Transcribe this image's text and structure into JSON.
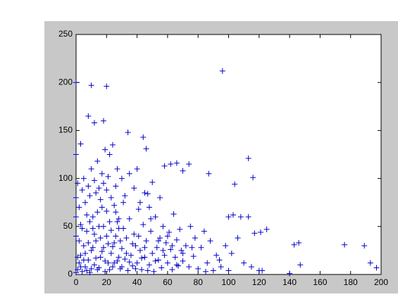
{
  "chart_data": {
    "type": "scatter",
    "color": "#0000c8",
    "marker": "plus",
    "x": [
      96,
      10,
      20,
      0,
      8,
      12,
      18,
      34,
      44,
      46,
      3,
      0,
      113,
      116,
      104,
      87,
      74,
      66,
      62,
      58,
      70,
      176,
      189,
      193,
      197,
      146,
      143,
      147,
      140,
      120,
      122,
      125,
      121,
      113,
      103,
      100,
      108,
      117,
      1,
      2,
      3,
      4,
      5,
      6,
      7,
      8,
      9,
      10,
      11,
      12,
      13,
      14,
      15,
      16,
      17,
      18,
      19,
      20,
      21,
      22,
      23,
      24,
      25,
      26,
      27,
      28,
      29,
      30,
      31,
      32,
      33,
      34,
      35,
      36,
      37,
      38,
      39,
      40,
      41,
      42,
      43,
      44,
      45,
      46,
      47,
      48,
      49,
      50,
      51,
      52,
      53,
      54,
      55,
      56,
      57,
      58,
      59,
      60,
      61,
      62,
      63,
      64,
      65,
      66,
      67,
      68,
      69,
      70,
      72,
      74,
      75,
      77,
      78,
      80,
      82,
      84,
      86,
      88,
      90,
      92,
      94,
      98,
      102,
      106,
      110,
      115,
      0,
      0,
      0,
      1,
      2,
      3,
      4,
      5,
      6,
      7,
      8,
      9,
      10,
      11,
      12,
      13,
      14,
      15,
      16,
      17,
      18,
      19,
      20,
      21,
      22,
      23,
      24,
      25,
      26,
      27,
      28,
      30,
      32,
      35,
      38,
      40,
      42,
      45,
      48,
      50,
      55,
      0,
      1,
      2,
      3,
      4,
      5,
      6,
      7,
      8,
      9,
      10,
      11,
      12,
      13,
      14,
      15,
      16,
      17,
      18,
      19,
      20,
      21,
      22,
      23,
      24,
      25,
      26,
      27,
      28,
      29,
      30,
      31,
      33,
      35,
      37,
      39,
      41,
      43,
      45,
      47,
      49,
      52,
      54,
      57,
      60,
      63,
      66,
      70,
      76,
      85,
      95,
      100
    ],
    "values": [
      212,
      197,
      196,
      200,
      165,
      158,
      160,
      148,
      143,
      131,
      136,
      125,
      121,
      101,
      94,
      105,
      115,
      116,
      115,
      113,
      108,
      31,
      30,
      12,
      7,
      33,
      31,
      10,
      1,
      4,
      4,
      47,
      44,
      60,
      62,
      60,
      60,
      43,
      5,
      12,
      20,
      3,
      30,
      8,
      45,
      15,
      2,
      25,
      60,
      10,
      35,
      5,
      50,
      18,
      70,
      28,
      3,
      40,
      12,
      55,
      22,
      8,
      33,
      65,
      14,
      48,
      6,
      27,
      75,
      16,
      38,
      4,
      58,
      20,
      9,
      42,
      30,
      12,
      68,
      25,
      5,
      52,
      18,
      35,
      84,
      10,
      45,
      22,
      3,
      60,
      28,
      15,
      38,
      7,
      50,
      20,
      33,
      12,
      44,
      26,
      5,
      63,
      18,
      36,
      9,
      47,
      25,
      14,
      30,
      8,
      50,
      19,
      38,
      6,
      28,
      45,
      12,
      35,
      4,
      20,
      15,
      30,
      22,
      38,
      12,
      8,
      80,
      60,
      40,
      95,
      70,
      52,
      88,
      100,
      75,
      62,
      92,
      82,
      110,
      48,
      98,
      85,
      118,
      90,
      78,
      105,
      95,
      130,
      88,
      102,
      125,
      80,
      135,
      72,
      92,
      110,
      58,
      100,
      82,
      105,
      90,
      110,
      75,
      85,
      70,
      96,
      80,
      2,
      18,
      35,
      8,
      48,
      15,
      22,
      4,
      33,
      55,
      6,
      28,
      42,
      17,
      65,
      7,
      38,
      24,
      50,
      14,
      66,
      32,
      5,
      46,
      29,
      12,
      40,
      55,
      18,
      35,
      8,
      48,
      22,
      13,
      32,
      6,
      40,
      17,
      28,
      4,
      58,
      14,
      35,
      25,
      40,
      30,
      10,
      22,
      28,
      3,
      8,
      4
    ],
    "xlim": [
      0,
      200
    ],
    "ylim": [
      0,
      250
    ],
    "xticks": [
      0,
      20,
      40,
      60,
      80,
      100,
      120,
      140,
      160,
      180,
      200
    ],
    "yticks": [
      0,
      50,
      100,
      150,
      200,
      250
    ]
  }
}
